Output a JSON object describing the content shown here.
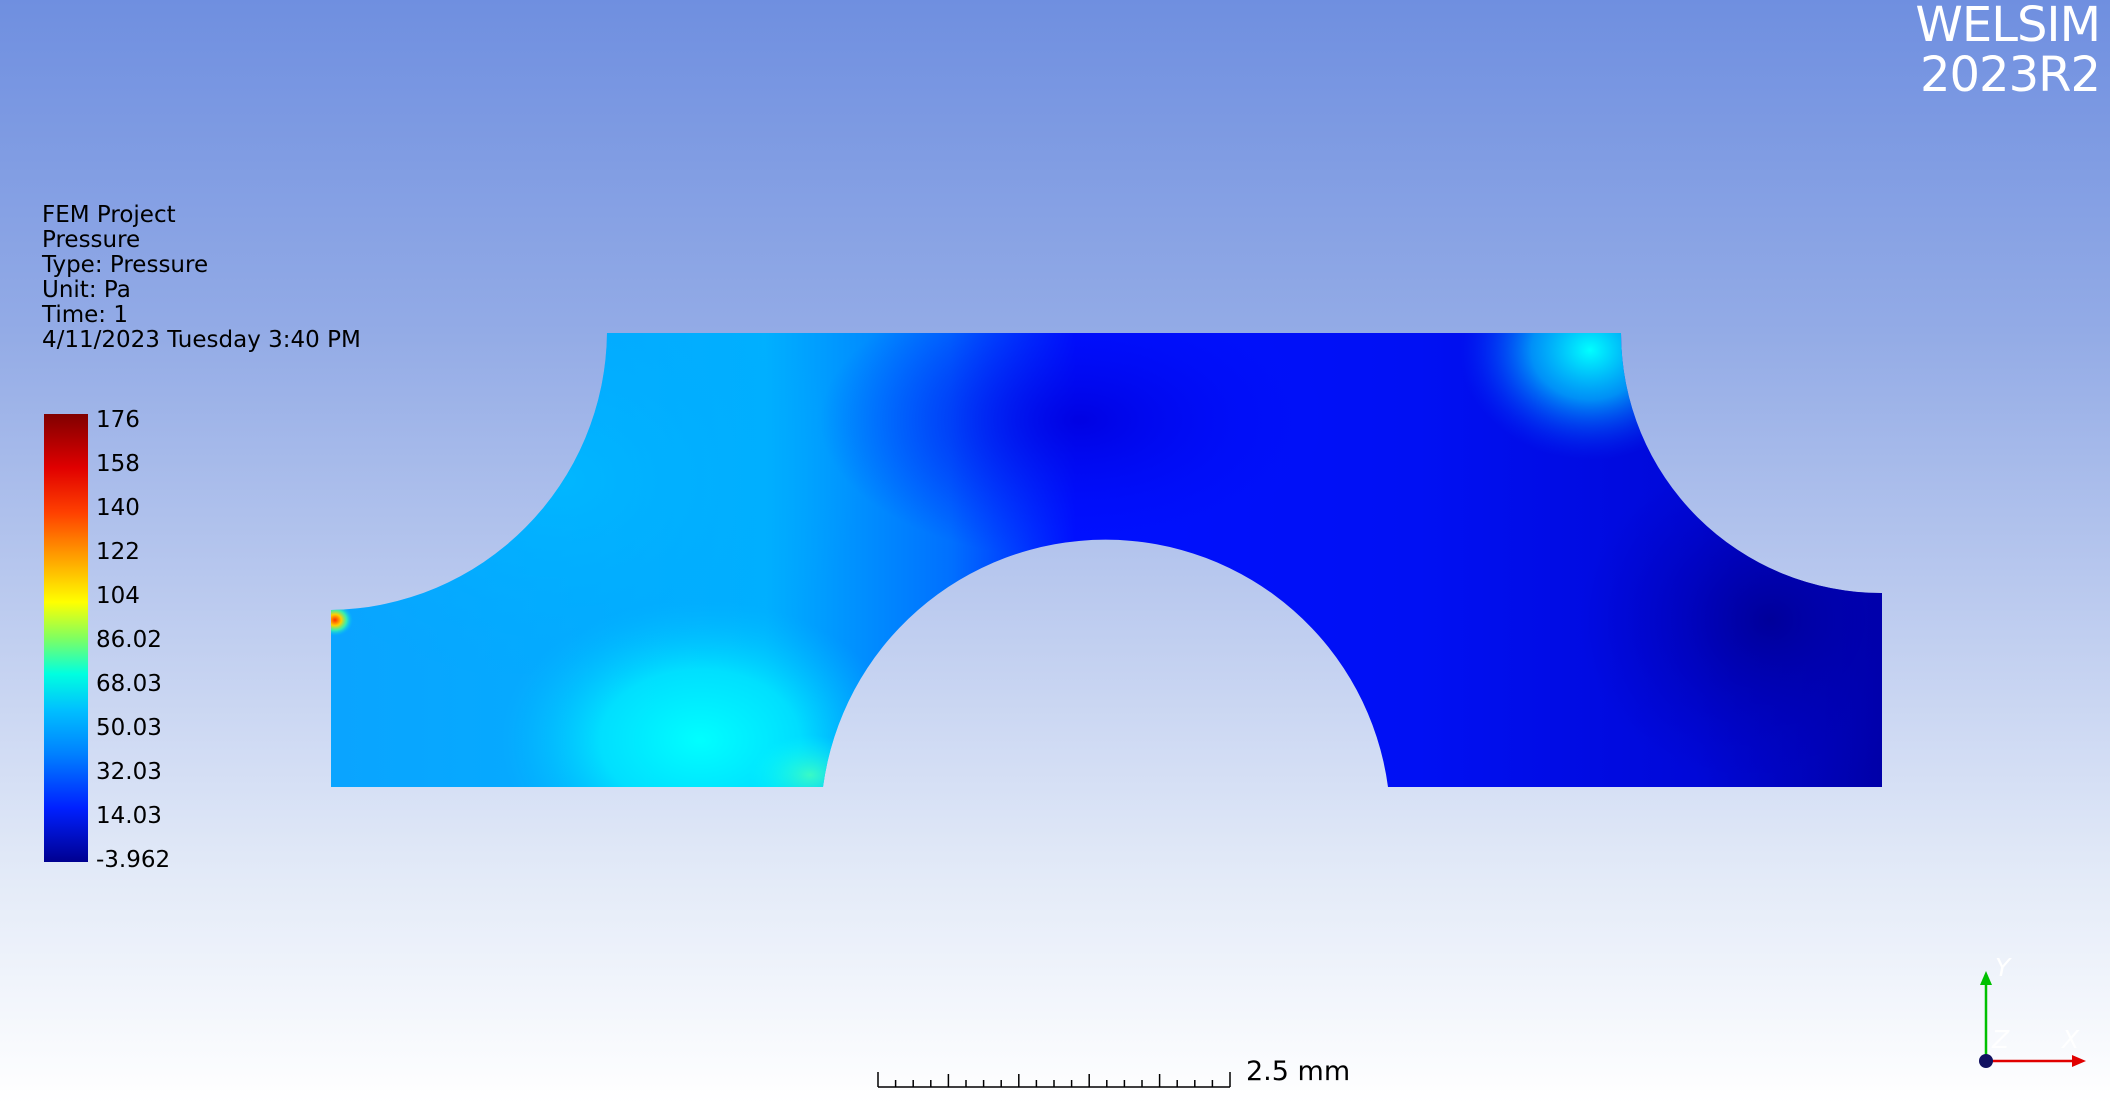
{
  "brand": {
    "line1": "WELSIM",
    "line2": "2023R2"
  },
  "info": {
    "project": "FEM Project",
    "result_name": "Pressure",
    "type": "Type: Pressure",
    "unit": "Unit: Pa",
    "time": "Time: 1",
    "timestamp": "4/11/2023 Tuesday 3:40 PM"
  },
  "legend": {
    "labels": [
      "176",
      "158",
      "140",
      "122",
      "104",
      "86.02",
      "68.03",
      "50.03",
      "32.03",
      "14.03",
      "-3.962"
    ],
    "colors": {
      "max": "#800000",
      "mid": "#00ffe0",
      "min": "#000090"
    }
  },
  "scale_bar": {
    "label": "2.5 mm"
  },
  "axes": {
    "y": "Y",
    "z": "Z",
    "x": "X"
  }
}
